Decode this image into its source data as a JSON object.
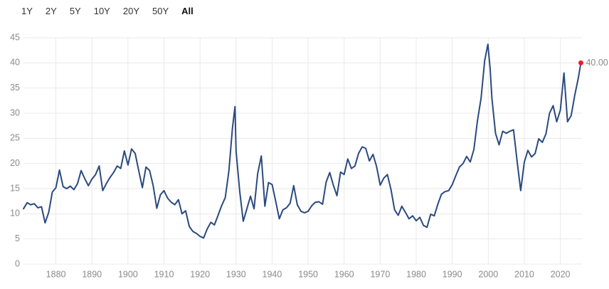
{
  "range_selector": {
    "options": [
      "1Y",
      "2Y",
      "5Y",
      "10Y",
      "20Y",
      "50Y",
      "All"
    ],
    "selected": "All"
  },
  "colors": {
    "line": "#2a4a7f",
    "last_point": "#e8202a",
    "grid": "#e9e9e9",
    "tick_text": "#8a8a8a"
  },
  "chart_data": {
    "type": "line",
    "xlim": [
      1871,
      2026
    ],
    "ylim": [
      0,
      45
    ],
    "x_ticks": [
      1880,
      1890,
      1900,
      1910,
      1920,
      1930,
      1940,
      1950,
      1960,
      1970,
      1980,
      1990,
      2000,
      2010,
      2020
    ],
    "y_ticks": [
      0,
      5,
      10,
      15,
      20,
      25,
      30,
      35,
      40,
      45
    ],
    "grid": true,
    "last_value_label": "40.00",
    "series": [
      {
        "x": [
          1871,
          1872,
          1873,
          1874,
          1875,
          1876,
          1877,
          1878,
          1879,
          1880,
          1881,
          1882,
          1883,
          1884,
          1885,
          1886,
          1887,
          1888,
          1889,
          1890,
          1891,
          1892,
          1893,
          1894,
          1895,
          1896,
          1897,
          1898,
          1899,
          1900,
          1901,
          1902,
          1903,
          1904,
          1905,
          1906,
          1907,
          1908,
          1909,
          1910,
          1911,
          1912,
          1913,
          1914,
          1915,
          1916,
          1917,
          1918,
          1919,
          1920,
          1921,
          1922,
          1923,
          1924,
          1925,
          1926,
          1927,
          1928,
          1929,
          1929.7,
          1930,
          1931,
          1932,
          1933,
          1934,
          1935,
          1936,
          1937,
          1938,
          1939,
          1940,
          1941,
          1942,
          1943,
          1944,
          1945,
          1946,
          1947,
          1948,
          1949,
          1950,
          1951,
          1952,
          1953,
          1954,
          1955,
          1956,
          1957,
          1958,
          1959,
          1960,
          1961,
          1962,
          1963,
          1964,
          1965,
          1966,
          1967,
          1968,
          1969,
          1970,
          1971,
          1972,
          1973,
          1974,
          1975,
          1976,
          1977,
          1978,
          1979,
          1980,
          1981,
          1982,
          1983,
          1984,
          1985,
          1986,
          1987,
          1988,
          1989,
          1990,
          1991,
          1992,
          1993,
          1994,
          1995,
          1996,
          1997,
          1998,
          1999,
          1999.9,
          2000.5,
          2001,
          2002,
          2003,
          2004,
          2005,
          2006,
          2007,
          2008,
          2009,
          2010,
          2011,
          2012,
          2013,
          2014,
          2015,
          2016,
          2017,
          2018,
          2019,
          2020,
          2021,
          2022,
          2023,
          2024,
          2025,
          2025.7
        ],
        "values": [
          11.0,
          12.2,
          11.8,
          12.0,
          11.2,
          11.4,
          8.2,
          10.3,
          14.3,
          15.2,
          18.7,
          15.4,
          15.0,
          15.5,
          14.8,
          16.0,
          18.6,
          17.0,
          15.6,
          16.9,
          17.8,
          19.5,
          14.6,
          16.0,
          17.2,
          18.2,
          19.5,
          19.0,
          22.5,
          19.7,
          22.9,
          22.0,
          18.5,
          15.2,
          19.3,
          18.6,
          15.6,
          11.1,
          13.8,
          14.6,
          13.1,
          12.3,
          11.8,
          12.8,
          10.0,
          10.6,
          7.5,
          6.5,
          6.1,
          5.5,
          5.2,
          7.0,
          8.3,
          7.8,
          9.7,
          11.6,
          13.2,
          18.5,
          27.0,
          31.3,
          22.5,
          14.5,
          8.5,
          11.0,
          13.5,
          11.0,
          18.0,
          21.5,
          11.5,
          16.2,
          15.8,
          12.5,
          9.0,
          10.8,
          11.2,
          12.1,
          15.6,
          11.8,
          10.5,
          10.2,
          10.5,
          11.6,
          12.3,
          12.4,
          11.9,
          16.3,
          18.2,
          15.7,
          13.6,
          18.3,
          17.8,
          20.9,
          19.0,
          19.5,
          22.0,
          23.3,
          23.0,
          20.5,
          21.8,
          19.4,
          15.7,
          17.1,
          17.8,
          14.8,
          10.8,
          9.7,
          11.5,
          10.3,
          9.0,
          9.6,
          8.6,
          9.3,
          7.7,
          7.3,
          9.9,
          9.6,
          11.9,
          13.9,
          14.4,
          14.6,
          15.8,
          17.6,
          19.3,
          20.0,
          21.4,
          20.3,
          22.8,
          28.5,
          33.0,
          40.5,
          43.7,
          38.9,
          33.0,
          26.0,
          23.7,
          26.4,
          26.0,
          26.4,
          26.7,
          20.5,
          14.6,
          20.3,
          22.6,
          21.3,
          22.0,
          24.9,
          24.2,
          25.9,
          30.0,
          31.5,
          28.3,
          30.6,
          38.0,
          28.3,
          29.5,
          33.6,
          37.0,
          40.0
        ]
      }
    ]
  }
}
